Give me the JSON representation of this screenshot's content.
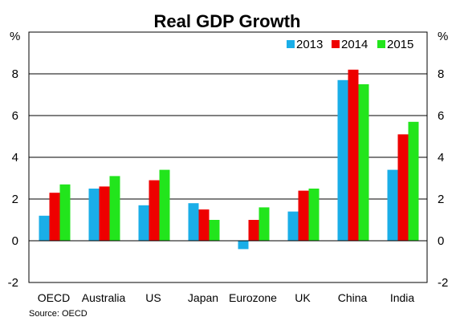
{
  "chart_data": {
    "type": "bar",
    "title": "Real GDP Growth",
    "unit_left": "%",
    "unit_right": "%",
    "categories": [
      "OECD",
      "Australia",
      "US",
      "Japan",
      "Eurozone",
      "UK",
      "China",
      "India"
    ],
    "series": [
      {
        "name": "2013",
        "color": "#1aaee8",
        "values": [
          1.2,
          2.5,
          1.7,
          1.8,
          -0.4,
          1.4,
          7.7,
          3.4
        ]
      },
      {
        "name": "2014",
        "color": "#ee0000",
        "values": [
          2.3,
          2.6,
          2.9,
          1.5,
          1.0,
          2.4,
          8.2,
          5.1
        ]
      },
      {
        "name": "2015",
        "color": "#22e51c",
        "values": [
          2.7,
          3.1,
          3.4,
          1.0,
          1.6,
          2.5,
          7.5,
          5.7
        ]
      }
    ],
    "ylim": [
      -2,
      10
    ],
    "yticks": [
      -2,
      0,
      2,
      4,
      6,
      8
    ],
    "grid": true,
    "legend_position": "top-right",
    "source": "Source: OECD"
  }
}
